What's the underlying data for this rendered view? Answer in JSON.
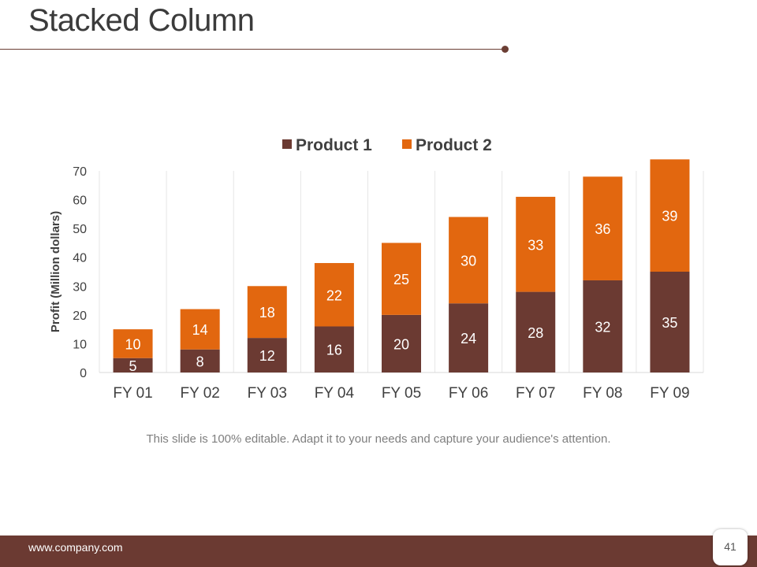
{
  "slide": {
    "title": "Stacked Column",
    "caption": "This slide is 100% editable. Adapt it to your needs and capture your audience's attention.",
    "footer_url": "www.company.com",
    "page_number": "41"
  },
  "colors": {
    "product1": "#6b3a32",
    "product2": "#e2670f",
    "footer": "#6b3a32",
    "grid": "#e6e6e6"
  },
  "chart_data": {
    "type": "bar",
    "stacked": true,
    "title": "",
    "xlabel": "",
    "ylabel": "Profit  (Million dollars)",
    "ylim": [
      0,
      70
    ],
    "yticks": [
      0,
      10,
      20,
      30,
      40,
      50,
      60,
      70
    ],
    "categories": [
      "FY 01",
      "FY 02",
      "FY 03",
      "FY 04",
      "FY 05",
      "FY 06",
      "FY 07",
      "FY 08",
      "FY 09"
    ],
    "series": [
      {
        "name": "Product 1",
        "values": [
          5,
          8,
          12,
          16,
          20,
          24,
          28,
          32,
          35
        ]
      },
      {
        "name": "Product 2",
        "values": [
          10,
          14,
          18,
          22,
          25,
          30,
          33,
          36,
          39
        ]
      }
    ],
    "legend": "top-center",
    "grid": "vertical"
  }
}
